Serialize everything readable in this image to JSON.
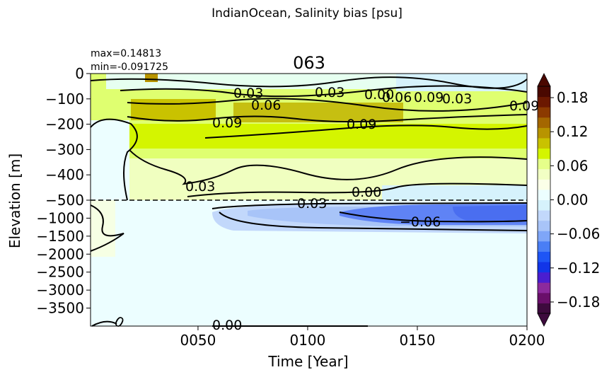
{
  "chart_data": {
    "type": "heatmap",
    "title": "IndianOcean, Salinity bias [psu]",
    "subtitle": "063",
    "stats": {
      "max": "max=0.14813",
      "min": "min=-0.091725"
    },
    "xlabel": "Time [Year]",
    "ylabel": "Elevation [m]",
    "x_ticks": [
      "0050",
      "0100",
      "0150",
      "0200"
    ],
    "x_tick_values": [
      50,
      100,
      150,
      200
    ],
    "xlim": [
      1,
      200
    ],
    "y_ticks_upper": [
      "0",
      "−100",
      "−200",
      "−300",
      "−400",
      "−500"
    ],
    "y_ticks_lower": [
      "−1000",
      "−1500",
      "−2000",
      "−2500",
      "−3000",
      "−3500"
    ],
    "upper_panel_range_m": [
      0,
      -500
    ],
    "lower_panel_range_m": [
      -500,
      -4000
    ],
    "colorbar": {
      "ticks": [
        "0.18",
        "0.12",
        "0.06",
        "0.00",
        "−0.06",
        "−0.12",
        "−0.18"
      ],
      "range": [
        -0.2,
        0.2
      ],
      "extend": "both",
      "colors": [
        "#3d0a3d",
        "#6a0f6a",
        "#8c2a9c",
        "#4a1ed0",
        "#1235e8",
        "#1e55f5",
        "#4a7ef5",
        "#7fa6f8",
        "#a8c4f8",
        "#c2d8fb",
        "#d6f2fc",
        "#ecfeff",
        "#fbffe8",
        "#f2ffc4",
        "#e6ff8a",
        "#d4f500",
        "#c9c200",
        "#b89400",
        "#a46700",
        "#8b3a00",
        "#6b1800",
        "#4a0800"
      ]
    },
    "contour_labels": [
      "0.03",
      "0.06",
      "0.09",
      "0.03",
      "0.00",
      "0.06",
      "0.09",
      "0.03",
      "0.09",
      "0.09",
      "0.03",
      "0.00",
      "0.03",
      "−0.06",
      "0",
      "0.00"
    ]
  }
}
